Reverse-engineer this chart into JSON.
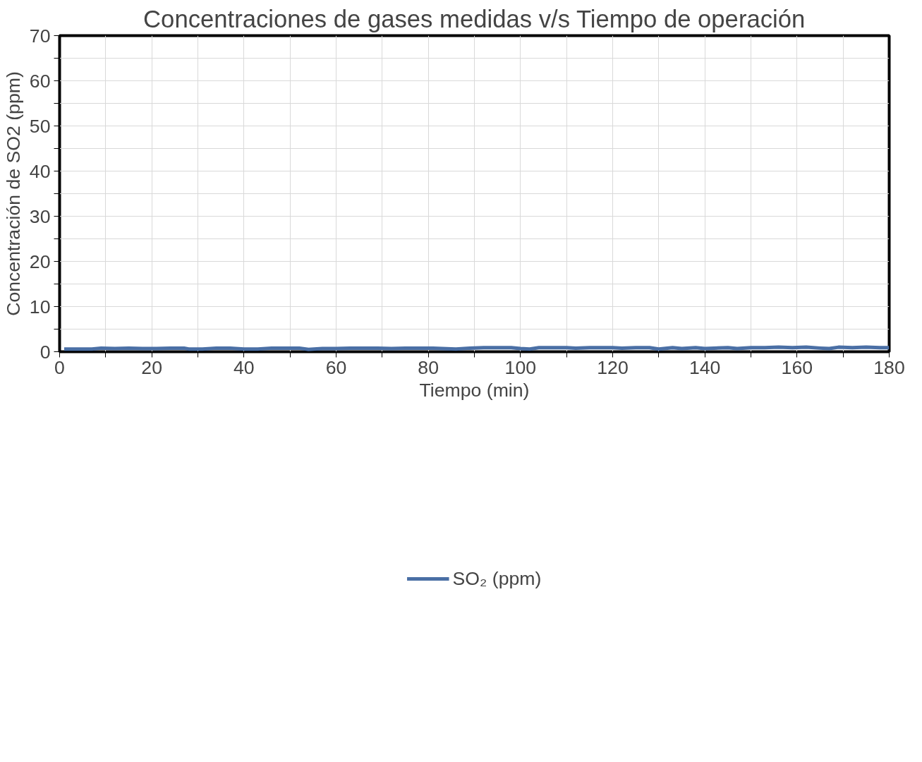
{
  "chart_data": {
    "type": "line",
    "title": "Concentraciones de gases medidas v/s Tiempo de operación",
    "xlabel": "Tiempo (min)",
    "ylabel": "Concentración de SO2 (ppm)",
    "xlim": [
      0,
      180
    ],
    "ylim": [
      0,
      70
    ],
    "xticks": [
      0,
      {
        "value": 10,
        "label": null
      },
      20,
      {
        "value": 30,
        "label": null
      },
      40,
      {
        "value": 50,
        "label": null
      },
      60,
      {
        "value": 70,
        "label": null
      },
      80,
      {
        "value": 90,
        "label": null
      },
      100,
      {
        "value": 110,
        "label": null
      },
      120,
      {
        "value": 130,
        "label": null
      },
      140,
      {
        "value": 150,
        "label": null
      },
      160,
      {
        "value": 170,
        "label": null
      },
      180
    ],
    "yticks": [
      0,
      {
        "value": 5,
        "label": null
      },
      10,
      {
        "value": 15,
        "label": null
      },
      20,
      {
        "value": 25,
        "label": null
      },
      30,
      {
        "value": 35,
        "label": null
      },
      40,
      {
        "value": 45,
        "label": null
      },
      50,
      {
        "value": 55,
        "label": null
      },
      60,
      {
        "value": 65,
        "label": null
      },
      70
    ],
    "grid": true,
    "legend": "bottom",
    "marker": "none",
    "line_style": "solid",
    "series": [
      {
        "name": "SO₂ (ppm)",
        "color": "#4a6fa5",
        "x": [
          1,
          4,
          7,
          9,
          12,
          15,
          18,
          21,
          24,
          27,
          28,
          31,
          34,
          37,
          40,
          43,
          46,
          49,
          52,
          54,
          57,
          60,
          63,
          66,
          69,
          72,
          75,
          78,
          81,
          83,
          86,
          89,
          92,
          95,
          98,
          100,
          102,
          104,
          107,
          110,
          112,
          115,
          118,
          120,
          122,
          125,
          128,
          130,
          133,
          135,
          138,
          140,
          142,
          145,
          147,
          150,
          153,
          156,
          159,
          162,
          165,
          167,
          169,
          172,
          175,
          178,
          180
        ],
        "values": [
          0.6,
          0.6,
          0.6,
          0.8,
          0.7,
          0.8,
          0.7,
          0.7,
          0.8,
          0.8,
          0.6,
          0.6,
          0.8,
          0.8,
          0.6,
          0.6,
          0.8,
          0.8,
          0.8,
          0.5,
          0.7,
          0.7,
          0.8,
          0.8,
          0.8,
          0.7,
          0.8,
          0.8,
          0.8,
          0.7,
          0.6,
          0.8,
          0.9,
          0.9,
          0.9,
          0.7,
          0.6,
          0.9,
          0.9,
          0.9,
          0.8,
          0.9,
          0.9,
          0.9,
          0.8,
          0.9,
          0.9,
          0.6,
          0.9,
          0.7,
          0.9,
          0.7,
          0.8,
          0.9,
          0.7,
          0.9,
          0.9,
          1.0,
          0.9,
          1.0,
          0.8,
          0.7,
          1.0,
          0.9,
          1.0,
          0.9,
          0.9
        ]
      }
    ]
  }
}
